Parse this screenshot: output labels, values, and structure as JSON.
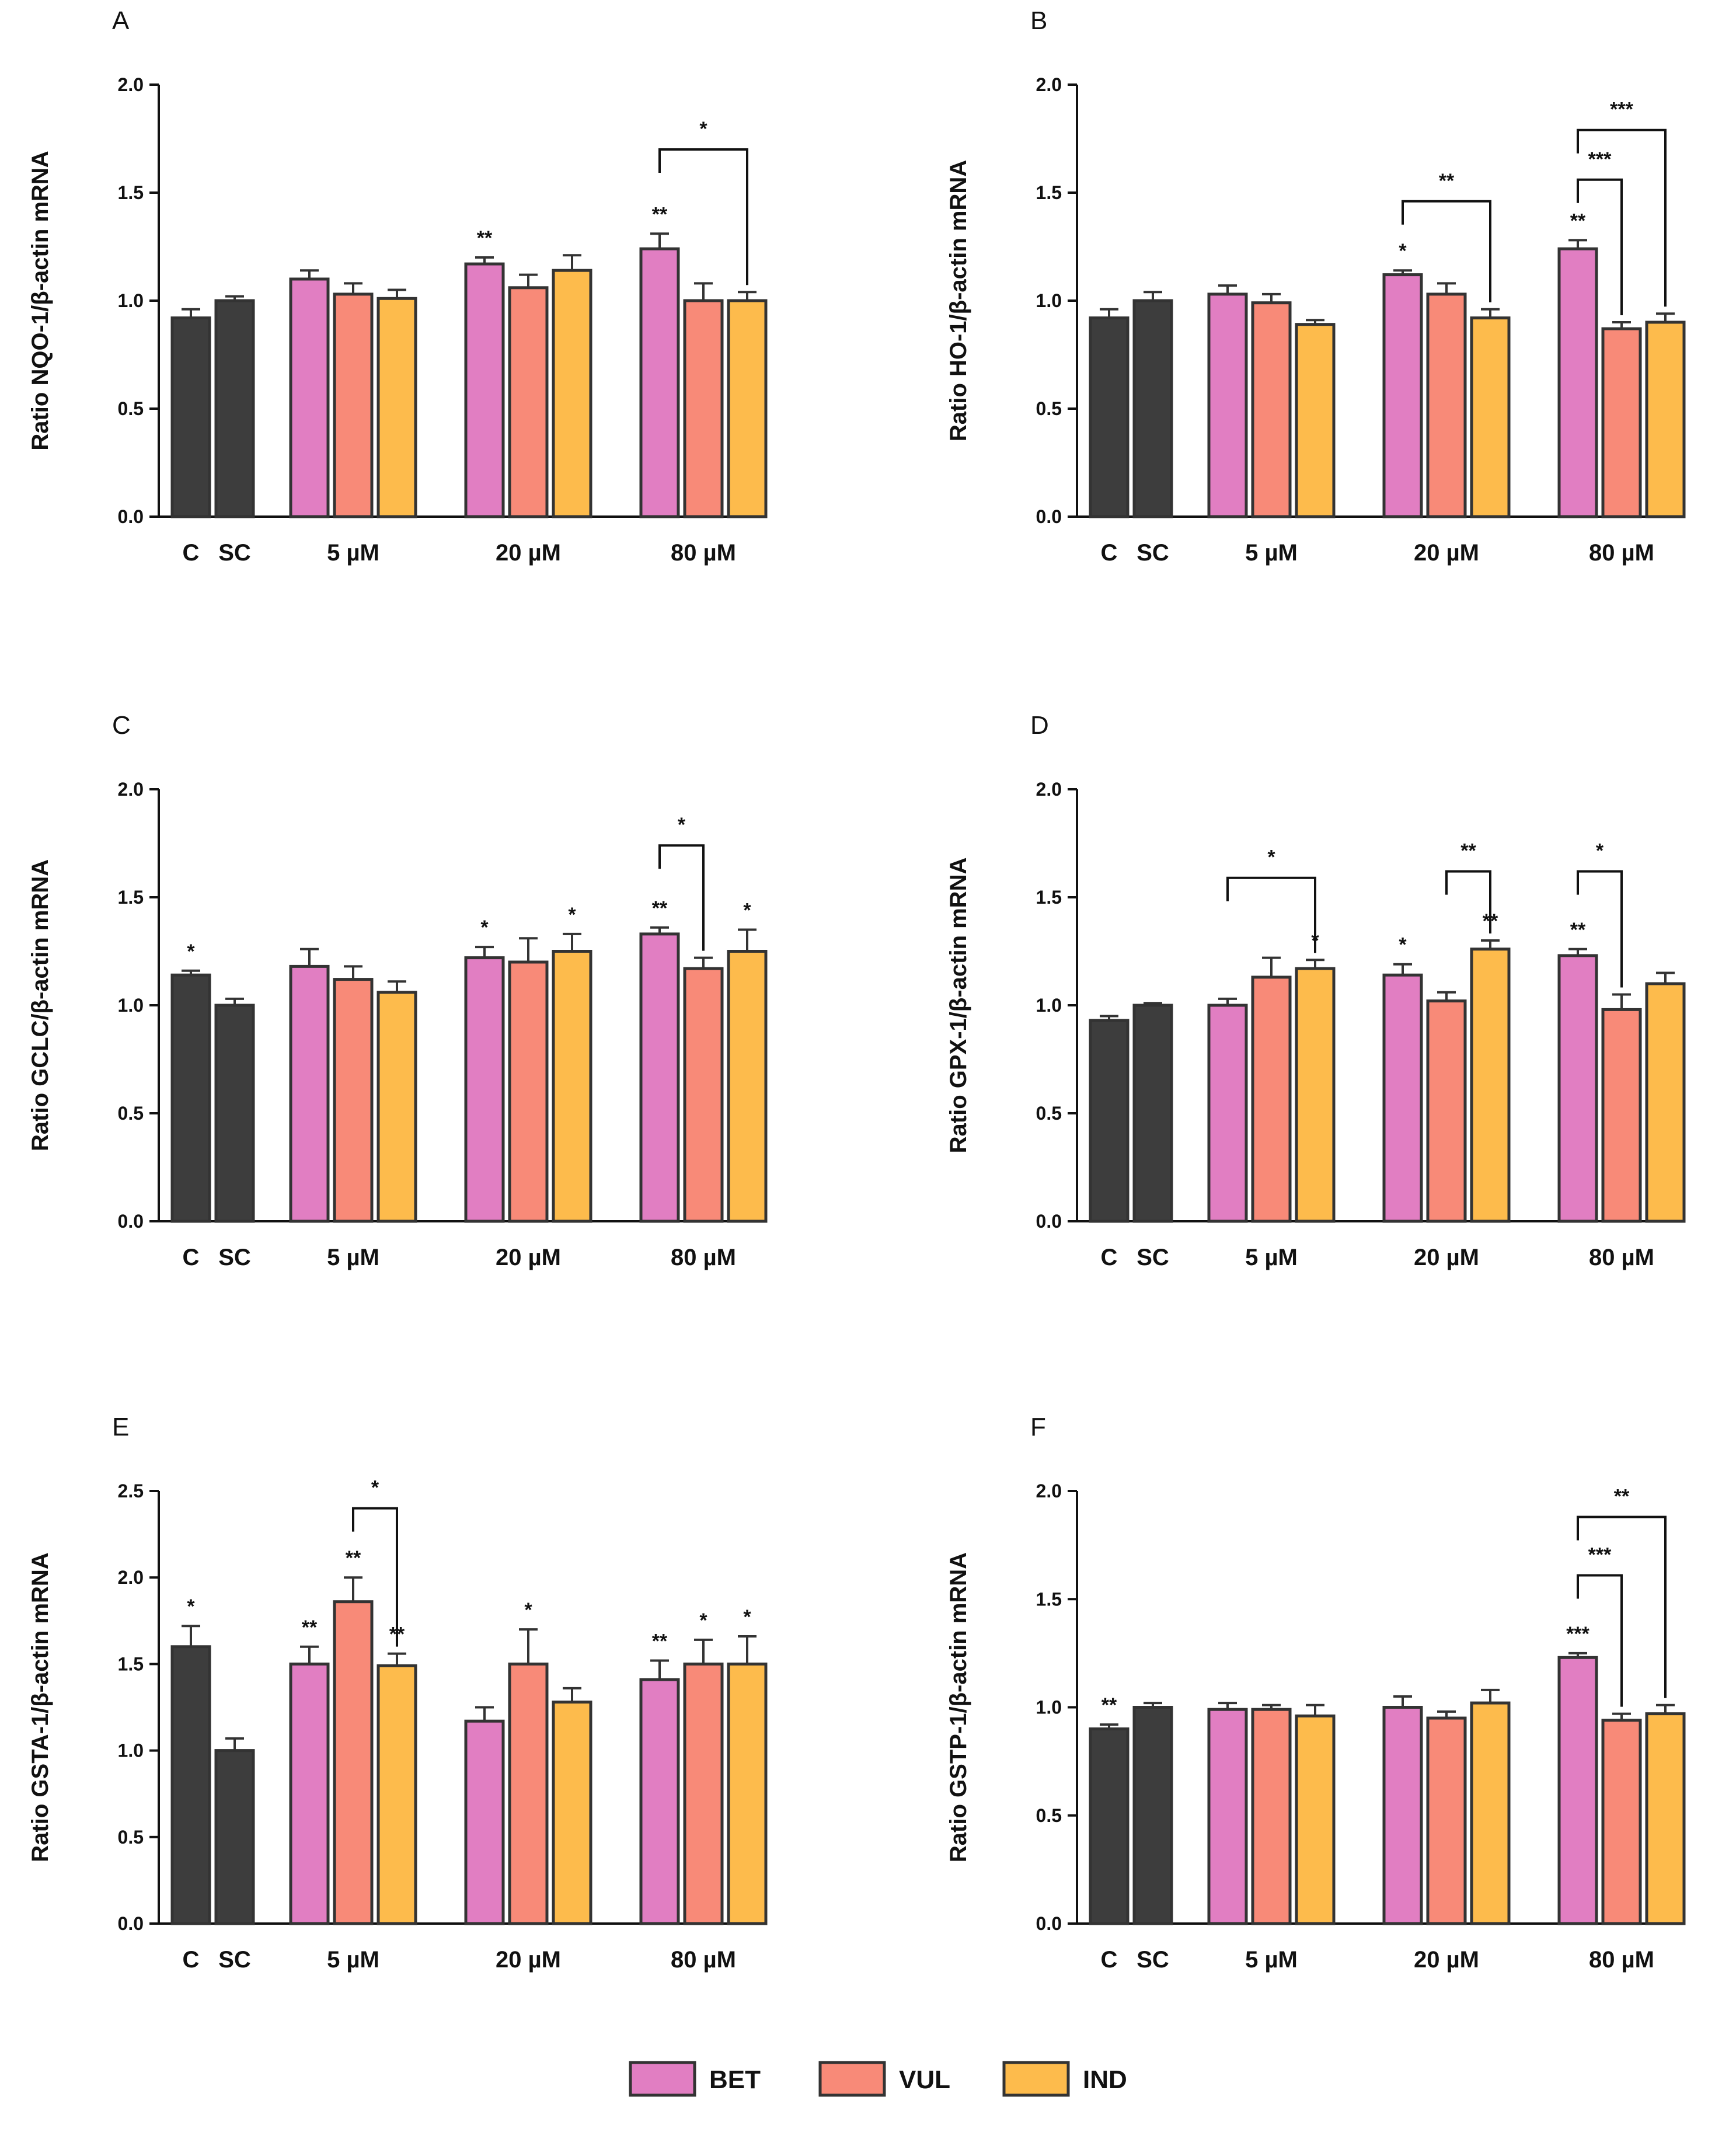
{
  "figure": {
    "colors": {
      "control": "#3d3d3d",
      "BET": "#e17ec2",
      "VUL": "#f88a78",
      "IND": "#fdbb4c",
      "stroke": "#333333"
    },
    "legend": [
      {
        "key": "BET",
        "label": "BET"
      },
      {
        "key": "VUL",
        "label": "VUL"
      },
      {
        "key": "IND",
        "label": "IND"
      }
    ]
  },
  "chart_data": [
    {
      "id": "A",
      "type": "bar",
      "panel_label": "A",
      "ylabel": "Ratio NQO-1/β-actin mRNA",
      "ylim": [
        0,
        2.0
      ],
      "yticks": [
        "0.0",
        "0.5",
        "1.0",
        "1.5",
        "2.0"
      ],
      "group_labels": [
        "C",
        "SC",
        "5 µM",
        "20 µM",
        "80 µM"
      ],
      "bars": [
        {
          "series": "control",
          "value": 0.92,
          "error": 0.04,
          "sig": ""
        },
        {
          "series": "control",
          "value": 1.0,
          "error": 0.02,
          "sig": ""
        },
        {
          "series": "BET",
          "value": 1.1,
          "error": 0.04,
          "sig": ""
        },
        {
          "series": "VUL",
          "value": 1.03,
          "error": 0.05,
          "sig": ""
        },
        {
          "series": "IND",
          "value": 1.01,
          "error": 0.04,
          "sig": ""
        },
        {
          "series": "BET",
          "value": 1.17,
          "error": 0.03,
          "sig": "**"
        },
        {
          "series": "VUL",
          "value": 1.06,
          "error": 0.06,
          "sig": ""
        },
        {
          "series": "IND",
          "value": 1.14,
          "error": 0.07,
          "sig": ""
        },
        {
          "series": "BET",
          "value": 1.24,
          "error": 0.07,
          "sig": "**"
        },
        {
          "series": "VUL",
          "value": 1.0,
          "error": 0.08,
          "sig": ""
        },
        {
          "series": "IND",
          "value": 1.0,
          "error": 0.04,
          "sig": ""
        }
      ],
      "brackets": [
        {
          "from": 8,
          "to": 10,
          "y": 1.7,
          "label": "*"
        }
      ]
    },
    {
      "id": "B",
      "type": "bar",
      "panel_label": "B",
      "ylabel": "Ratio HO-1/β-actin mRNA",
      "ylim": [
        0,
        2.0
      ],
      "yticks": [
        "0.0",
        "0.5",
        "1.0",
        "1.5",
        "2.0"
      ],
      "group_labels": [
        "C",
        "SC",
        "5 µM",
        "20 µM",
        "80 µM"
      ],
      "bars": [
        {
          "series": "control",
          "value": 0.92,
          "error": 0.04,
          "sig": ""
        },
        {
          "series": "control",
          "value": 1.0,
          "error": 0.04,
          "sig": ""
        },
        {
          "series": "BET",
          "value": 1.03,
          "error": 0.04,
          "sig": ""
        },
        {
          "series": "VUL",
          "value": 0.99,
          "error": 0.04,
          "sig": ""
        },
        {
          "series": "IND",
          "value": 0.89,
          "error": 0.02,
          "sig": ""
        },
        {
          "series": "BET",
          "value": 1.12,
          "error": 0.02,
          "sig": "*"
        },
        {
          "series": "VUL",
          "value": 1.03,
          "error": 0.05,
          "sig": ""
        },
        {
          "series": "IND",
          "value": 0.92,
          "error": 0.04,
          "sig": ""
        },
        {
          "series": "BET",
          "value": 1.24,
          "error": 0.04,
          "sig": "**"
        },
        {
          "series": "VUL",
          "value": 0.87,
          "error": 0.03,
          "sig": ""
        },
        {
          "series": "IND",
          "value": 0.9,
          "error": 0.04,
          "sig": ""
        }
      ],
      "brackets": [
        {
          "from": 5,
          "to": 7,
          "y": 1.46,
          "label": "**"
        },
        {
          "from": 8,
          "to": 9,
          "y": 1.56,
          "label": "***"
        },
        {
          "from": 8,
          "to": 9,
          "y": 1.56,
          "label": "***",
          "hidden_duplicate": true
        },
        {
          "from": 8,
          "to": 10,
          "y": 1.79,
          "label": "***"
        }
      ]
    },
    {
      "id": "C",
      "type": "bar",
      "panel_label": "C",
      "ylabel": "Ratio GCLC/β-actin mRNA",
      "ylim": [
        0,
        2.0
      ],
      "yticks": [
        "0.0",
        "0.5",
        "1.0",
        "1.5",
        "2.0"
      ],
      "group_labels": [
        "C",
        "SC",
        "5 µM",
        "20 µM",
        "80 µM"
      ],
      "bars": [
        {
          "series": "control",
          "value": 1.14,
          "error": 0.02,
          "sig": "*"
        },
        {
          "series": "control",
          "value": 1.0,
          "error": 0.03,
          "sig": ""
        },
        {
          "series": "BET",
          "value": 1.18,
          "error": 0.08,
          "sig": ""
        },
        {
          "series": "VUL",
          "value": 1.12,
          "error": 0.06,
          "sig": ""
        },
        {
          "series": "IND",
          "value": 1.06,
          "error": 0.05,
          "sig": ""
        },
        {
          "series": "BET",
          "value": 1.22,
          "error": 0.05,
          "sig": "*"
        },
        {
          "series": "VUL",
          "value": 1.2,
          "error": 0.11,
          "sig": ""
        },
        {
          "series": "IND",
          "value": 1.25,
          "error": 0.08,
          "sig": "*"
        },
        {
          "series": "BET",
          "value": 1.33,
          "error": 0.03,
          "sig": "**"
        },
        {
          "series": "VUL",
          "value": 1.17,
          "error": 0.05,
          "sig": ""
        },
        {
          "series": "IND",
          "value": 1.25,
          "error": 0.1,
          "sig": "*"
        }
      ],
      "brackets": [
        {
          "from": 8,
          "to": 9,
          "y": 1.74,
          "label": "*"
        }
      ]
    },
    {
      "id": "D",
      "type": "bar",
      "panel_label": "D",
      "ylabel": "Ratio GPX-1/β-actin mRNA",
      "ylim": [
        0,
        2.0
      ],
      "yticks": [
        "0.0",
        "0.5",
        "1.0",
        "1.5",
        "2.0"
      ],
      "group_labels": [
        "C",
        "SC",
        "5 µM",
        "20 µM",
        "80 µM"
      ],
      "bars": [
        {
          "series": "control",
          "value": 0.93,
          "error": 0.02,
          "sig": ""
        },
        {
          "series": "control",
          "value": 1.0,
          "error": 0.01,
          "sig": ""
        },
        {
          "series": "BET",
          "value": 1.0,
          "error": 0.03,
          "sig": ""
        },
        {
          "series": "VUL",
          "value": 1.13,
          "error": 0.09,
          "sig": ""
        },
        {
          "series": "IND",
          "value": 1.17,
          "error": 0.04,
          "sig": "*"
        },
        {
          "series": "BET",
          "value": 1.14,
          "error": 0.05,
          "sig": "*"
        },
        {
          "series": "VUL",
          "value": 1.02,
          "error": 0.04,
          "sig": ""
        },
        {
          "series": "IND",
          "value": 1.26,
          "error": 0.04,
          "sig": "**"
        },
        {
          "series": "BET",
          "value": 1.23,
          "error": 0.03,
          "sig": "**"
        },
        {
          "series": "VUL",
          "value": 0.98,
          "error": 0.07,
          "sig": ""
        },
        {
          "series": "IND",
          "value": 1.1,
          "error": 0.05,
          "sig": ""
        }
      ],
      "brackets": [
        {
          "from": 2,
          "to": 4,
          "y": 1.59,
          "label": "*"
        },
        {
          "from": 6,
          "to": 7,
          "y": 1.62,
          "label": "**"
        },
        {
          "from": 8,
          "to": 9,
          "y": 1.62,
          "label": "*"
        }
      ]
    },
    {
      "id": "E",
      "type": "bar",
      "panel_label": "E",
      "ylabel": "Ratio GSTA-1/β-actin mRNA",
      "ylim": [
        0,
        2.5
      ],
      "yticks": [
        "0.0",
        "0.5",
        "1.0",
        "1.5",
        "2.0",
        "2.5"
      ],
      "group_labels": [
        "C",
        "SC",
        "5 µM",
        "20 µM",
        "80 µM"
      ],
      "bars": [
        {
          "series": "control",
          "value": 1.6,
          "error": 0.12,
          "sig": "*"
        },
        {
          "series": "control",
          "value": 1.0,
          "error": 0.07,
          "sig": ""
        },
        {
          "series": "BET",
          "value": 1.5,
          "error": 0.1,
          "sig": "**"
        },
        {
          "series": "VUL",
          "value": 1.86,
          "error": 0.14,
          "sig": "**"
        },
        {
          "series": "IND",
          "value": 1.49,
          "error": 0.07,
          "sig": "**"
        },
        {
          "series": "BET",
          "value": 1.17,
          "error": 0.08,
          "sig": ""
        },
        {
          "series": "VUL",
          "value": 1.5,
          "error": 0.2,
          "sig": "*"
        },
        {
          "series": "IND",
          "value": 1.28,
          "error": 0.08,
          "sig": ""
        },
        {
          "series": "BET",
          "value": 1.41,
          "error": 0.11,
          "sig": "**"
        },
        {
          "series": "VUL",
          "value": 1.5,
          "error": 0.14,
          "sig": "*"
        },
        {
          "series": "IND",
          "value": 1.5,
          "error": 0.16,
          "sig": "*"
        }
      ],
      "brackets": [
        {
          "from": 3,
          "to": 4,
          "y": 2.4,
          "label": "*"
        }
      ]
    },
    {
      "id": "F",
      "type": "bar",
      "panel_label": "F",
      "ylabel": "Ratio GSTP-1/β-actin mRNA",
      "ylim": [
        0,
        2.0
      ],
      "yticks": [
        "0.0",
        "0.5",
        "1.0",
        "1.5",
        "2.0"
      ],
      "group_labels": [
        "C",
        "SC",
        "5 µM",
        "20 µM",
        "80 µM"
      ],
      "bars": [
        {
          "series": "control",
          "value": 0.9,
          "error": 0.02,
          "sig": "**"
        },
        {
          "series": "control",
          "value": 1.0,
          "error": 0.02,
          "sig": ""
        },
        {
          "series": "BET",
          "value": 0.99,
          "error": 0.03,
          "sig": ""
        },
        {
          "series": "VUL",
          "value": 0.99,
          "error": 0.02,
          "sig": ""
        },
        {
          "series": "IND",
          "value": 0.96,
          "error": 0.05,
          "sig": ""
        },
        {
          "series": "BET",
          "value": 1.0,
          "error": 0.05,
          "sig": ""
        },
        {
          "series": "VUL",
          "value": 0.95,
          "error": 0.03,
          "sig": ""
        },
        {
          "series": "IND",
          "value": 1.02,
          "error": 0.06,
          "sig": ""
        },
        {
          "series": "BET",
          "value": 1.23,
          "error": 0.02,
          "sig": "***"
        },
        {
          "series": "VUL",
          "value": 0.94,
          "error": 0.03,
          "sig": ""
        },
        {
          "series": "IND",
          "value": 0.97,
          "error": 0.04,
          "sig": ""
        }
      ],
      "brackets": [
        {
          "from": 8,
          "to": 9,
          "y": 1.61,
          "label": "***"
        },
        {
          "from": 8,
          "to": 10,
          "y": 1.88,
          "label": "**"
        }
      ]
    }
  ]
}
